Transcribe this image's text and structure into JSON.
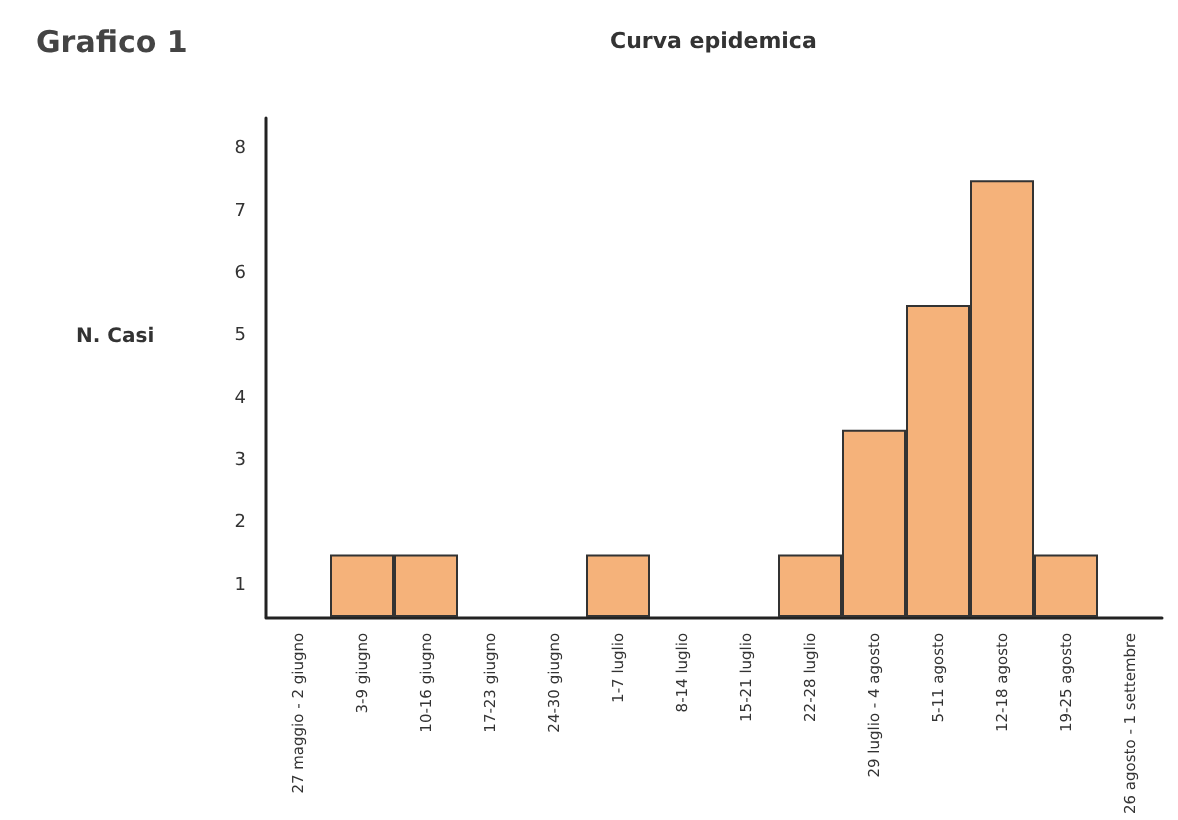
{
  "chart_data": {
    "type": "bar",
    "title": "Curva epidemica",
    "ylabel": "N. Casi",
    "annotations": [
      "Grafico 1"
    ],
    "categories": [
      "27 maggio - 2 giugno",
      "3-9 giugno",
      "10-16 giugno",
      "17-23 giugno",
      "24-30 giugno",
      "1-7 luglio",
      "8-14 luglio",
      "15-21 luglio",
      "22-28 luglio",
      "29 luglio - 4 agosto",
      "5-11 agosto",
      "12-18 agosto",
      "19-25 agosto",
      "26 agosto - 1 settembre"
    ],
    "values": [
      0,
      1,
      1,
      0,
      0,
      1,
      0,
      0,
      1,
      3,
      5,
      7,
      1,
      0
    ],
    "color": "#f5b27a",
    "ylim": [
      0,
      8
    ],
    "yticks": [
      {
        "value": 0.5,
        "label": "1"
      },
      {
        "value": 1.5,
        "label": "2"
      },
      {
        "value": 2.5,
        "label": "3"
      },
      {
        "value": 3.5,
        "label": "4"
      },
      {
        "value": 4.5,
        "label": "5"
      },
      {
        "value": 5.5,
        "label": "6"
      },
      {
        "value": 6.5,
        "label": "7"
      },
      {
        "value": 7.5,
        "label": "8"
      }
    ],
    "grid": false
  }
}
